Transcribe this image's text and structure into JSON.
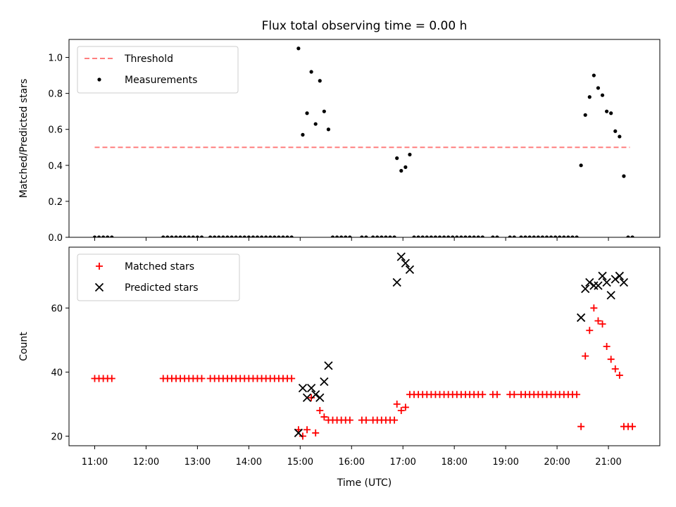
{
  "chart_data": [
    {
      "type": "scatter",
      "title": "Flux total observing time = 0.00 h",
      "xlabel": "",
      "ylabel": "Matched/Predicted stars",
      "ylim": [
        0,
        1.1
      ],
      "yticks": [
        0.0,
        0.2,
        0.4,
        0.6,
        0.8,
        1.0
      ],
      "xlim": [
        "10:30",
        "22:00"
      ],
      "grid": false,
      "legend_position": "top-left",
      "threshold": {
        "name": "Threshold",
        "value": 0.5,
        "x_start": "11:00",
        "x_end": "21:25",
        "color": "#ff7f7f",
        "style": "dashed"
      },
      "series": [
        {
          "name": "Measurements",
          "marker": "dot",
          "color": "#000000",
          "points": [
            [
              "11:00",
              0
            ],
            [
              "11:05",
              0
            ],
            [
              "11:10",
              0
            ],
            [
              "11:15",
              0
            ],
            [
              "11:20",
              0
            ],
            [
              "12:20",
              0
            ],
            [
              "12:25",
              0
            ],
            [
              "12:30",
              0
            ],
            [
              "12:35",
              0
            ],
            [
              "12:40",
              0
            ],
            [
              "12:45",
              0
            ],
            [
              "12:50",
              0
            ],
            [
              "12:55",
              0
            ],
            [
              "13:00",
              0
            ],
            [
              "13:05",
              0
            ],
            [
              "13:15",
              0
            ],
            [
              "13:20",
              0
            ],
            [
              "13:25",
              0
            ],
            [
              "13:30",
              0
            ],
            [
              "13:35",
              0
            ],
            [
              "13:40",
              0
            ],
            [
              "13:45",
              0
            ],
            [
              "13:50",
              0
            ],
            [
              "13:55",
              0
            ],
            [
              "14:00",
              0
            ],
            [
              "14:05",
              0
            ],
            [
              "14:10",
              0
            ],
            [
              "14:15",
              0
            ],
            [
              "14:20",
              0
            ],
            [
              "14:25",
              0
            ],
            [
              "14:30",
              0
            ],
            [
              "14:35",
              0
            ],
            [
              "14:40",
              0
            ],
            [
              "14:45",
              0
            ],
            [
              "14:50",
              0
            ],
            [
              "14:58",
              1.05
            ],
            [
              "15:03",
              0.57
            ],
            [
              "15:08",
              0.69
            ],
            [
              "15:13",
              0.92
            ],
            [
              "15:18",
              0.63
            ],
            [
              "15:23",
              0.87
            ],
            [
              "15:28",
              0.7
            ],
            [
              "15:33",
              0.6
            ],
            [
              "15:38",
              0
            ],
            [
              "15:43",
              0
            ],
            [
              "15:48",
              0
            ],
            [
              "15:53",
              0
            ],
            [
              "15:58",
              0
            ],
            [
              "16:12",
              0
            ],
            [
              "16:17",
              0
            ],
            [
              "16:25",
              0
            ],
            [
              "16:30",
              0
            ],
            [
              "16:35",
              0
            ],
            [
              "16:40",
              0
            ],
            [
              "16:45",
              0
            ],
            [
              "16:50",
              0
            ],
            [
              "16:53",
              0.44
            ],
            [
              "16:58",
              0.37
            ],
            [
              "17:03",
              0.39
            ],
            [
              "17:08",
              0.46
            ],
            [
              "17:13",
              0
            ],
            [
              "17:18",
              0
            ],
            [
              "17:23",
              0
            ],
            [
              "17:28",
              0
            ],
            [
              "17:33",
              0
            ],
            [
              "17:38",
              0
            ],
            [
              "17:43",
              0
            ],
            [
              "17:48",
              0
            ],
            [
              "17:53",
              0
            ],
            [
              "17:58",
              0
            ],
            [
              "18:03",
              0
            ],
            [
              "18:08",
              0
            ],
            [
              "18:13",
              0
            ],
            [
              "18:18",
              0
            ],
            [
              "18:23",
              0
            ],
            [
              "18:28",
              0
            ],
            [
              "18:33",
              0
            ],
            [
              "18:45",
              0
            ],
            [
              "18:50",
              0
            ],
            [
              "19:05",
              0
            ],
            [
              "19:10",
              0
            ],
            [
              "19:18",
              0
            ],
            [
              "19:23",
              0
            ],
            [
              "19:28",
              0
            ],
            [
              "19:33",
              0
            ],
            [
              "19:38",
              0
            ],
            [
              "19:43",
              0
            ],
            [
              "19:48",
              0
            ],
            [
              "19:53",
              0
            ],
            [
              "19:58",
              0
            ],
            [
              "20:03",
              0
            ],
            [
              "20:08",
              0
            ],
            [
              "20:13",
              0
            ],
            [
              "20:18",
              0
            ],
            [
              "20:23",
              0
            ],
            [
              "20:28",
              0.4
            ],
            [
              "20:33",
              0.68
            ],
            [
              "20:38",
              0.78
            ],
            [
              "20:43",
              0.9
            ],
            [
              "20:48",
              0.83
            ],
            [
              "20:53",
              0.79
            ],
            [
              "20:58",
              0.7
            ],
            [
              "21:03",
              0.69
            ],
            [
              "21:08",
              0.59
            ],
            [
              "21:13",
              0.56
            ],
            [
              "21:18",
              0.34
            ],
            [
              "21:23",
              0
            ],
            [
              "21:28",
              0
            ]
          ]
        }
      ]
    },
    {
      "type": "scatter",
      "title": "",
      "xlabel": "Time (UTC)",
      "ylabel": "Count",
      "ylim": [
        17,
        79
      ],
      "yticks": [
        20,
        40,
        60
      ],
      "xlim": [
        "10:30",
        "22:00"
      ],
      "xticks": [
        "11:00",
        "12:00",
        "13:00",
        "14:00",
        "15:00",
        "16:00",
        "17:00",
        "18:00",
        "19:00",
        "20:00",
        "21:00"
      ],
      "grid": false,
      "legend_position": "top-left",
      "series": [
        {
          "name": "Matched stars",
          "marker": "plus",
          "color": "#ff0000",
          "points": [
            [
              "11:00",
              38
            ],
            [
              "11:05",
              38
            ],
            [
              "11:10",
              38
            ],
            [
              "11:15",
              38
            ],
            [
              "11:20",
              38
            ],
            [
              "12:20",
              38
            ],
            [
              "12:25",
              38
            ],
            [
              "12:30",
              38
            ],
            [
              "12:35",
              38
            ],
            [
              "12:40",
              38
            ],
            [
              "12:45",
              38
            ],
            [
              "12:50",
              38
            ],
            [
              "12:55",
              38
            ],
            [
              "13:00",
              38
            ],
            [
              "13:05",
              38
            ],
            [
              "13:15",
              38
            ],
            [
              "13:20",
              38
            ],
            [
              "13:25",
              38
            ],
            [
              "13:30",
              38
            ],
            [
              "13:35",
              38
            ],
            [
              "13:40",
              38
            ],
            [
              "13:45",
              38
            ],
            [
              "13:50",
              38
            ],
            [
              "13:55",
              38
            ],
            [
              "14:00",
              38
            ],
            [
              "14:05",
              38
            ],
            [
              "14:10",
              38
            ],
            [
              "14:15",
              38
            ],
            [
              "14:20",
              38
            ],
            [
              "14:25",
              38
            ],
            [
              "14:30",
              38
            ],
            [
              "14:35",
              38
            ],
            [
              "14:40",
              38
            ],
            [
              "14:45",
              38
            ],
            [
              "14:50",
              38
            ],
            [
              "14:58",
              22
            ],
            [
              "15:03",
              20
            ],
            [
              "15:08",
              22
            ],
            [
              "15:13",
              32
            ],
            [
              "15:18",
              21
            ],
            [
              "15:23",
              28
            ],
            [
              "15:28",
              26
            ],
            [
              "15:33",
              25
            ],
            [
              "15:38",
              25
            ],
            [
              "15:43",
              25
            ],
            [
              "15:48",
              25
            ],
            [
              "15:53",
              25
            ],
            [
              "15:58",
              25
            ],
            [
              "16:12",
              25
            ],
            [
              "16:17",
              25
            ],
            [
              "16:25",
              25
            ],
            [
              "16:30",
              25
            ],
            [
              "16:35",
              25
            ],
            [
              "16:40",
              25
            ],
            [
              "16:45",
              25
            ],
            [
              "16:50",
              25
            ],
            [
              "16:53",
              30
            ],
            [
              "16:58",
              28
            ],
            [
              "17:03",
              29
            ],
            [
              "17:08",
              33
            ],
            [
              "17:13",
              33
            ],
            [
              "17:18",
              33
            ],
            [
              "17:23",
              33
            ],
            [
              "17:28",
              33
            ],
            [
              "17:33",
              33
            ],
            [
              "17:38",
              33
            ],
            [
              "17:43",
              33
            ],
            [
              "17:48",
              33
            ],
            [
              "17:53",
              33
            ],
            [
              "17:58",
              33
            ],
            [
              "18:03",
              33
            ],
            [
              "18:08",
              33
            ],
            [
              "18:13",
              33
            ],
            [
              "18:18",
              33
            ],
            [
              "18:23",
              33
            ],
            [
              "18:28",
              33
            ],
            [
              "18:33",
              33
            ],
            [
              "18:45",
              33
            ],
            [
              "18:50",
              33
            ],
            [
              "19:05",
              33
            ],
            [
              "19:10",
              33
            ],
            [
              "19:18",
              33
            ],
            [
              "19:23",
              33
            ],
            [
              "19:28",
              33
            ],
            [
              "19:33",
              33
            ],
            [
              "19:38",
              33
            ],
            [
              "19:43",
              33
            ],
            [
              "19:48",
              33
            ],
            [
              "19:53",
              33
            ],
            [
              "19:58",
              33
            ],
            [
              "20:03",
              33
            ],
            [
              "20:08",
              33
            ],
            [
              "20:13",
              33
            ],
            [
              "20:18",
              33
            ],
            [
              "20:23",
              33
            ],
            [
              "20:28",
              23
            ],
            [
              "20:33",
              45
            ],
            [
              "20:38",
              53
            ],
            [
              "20:43",
              60
            ],
            [
              "20:48",
              56
            ],
            [
              "20:53",
              55
            ],
            [
              "20:58",
              48
            ],
            [
              "21:03",
              44
            ],
            [
              "21:08",
              41
            ],
            [
              "21:13",
              39
            ],
            [
              "21:18",
              23
            ],
            [
              "21:23",
              23
            ],
            [
              "21:28",
              23
            ]
          ]
        },
        {
          "name": "Predicted stars",
          "marker": "x",
          "color": "#000000",
          "points": [
            [
              "14:58",
              21
            ],
            [
              "15:03",
              35
            ],
            [
              "15:08",
              32
            ],
            [
              "15:13",
              35
            ],
            [
              "15:18",
              33
            ],
            [
              "15:23",
              32
            ],
            [
              "15:28",
              37
            ],
            [
              "15:33",
              42
            ],
            [
              "16:53",
              68
            ],
            [
              "16:58",
              76
            ],
            [
              "17:03",
              74
            ],
            [
              "17:08",
              72
            ],
            [
              "20:28",
              57
            ],
            [
              "20:33",
              66
            ],
            [
              "20:38",
              68
            ],
            [
              "20:43",
              67
            ],
            [
              "20:48",
              67
            ],
            [
              "20:53",
              70
            ],
            [
              "20:58",
              68
            ],
            [
              "21:03",
              64
            ],
            [
              "21:08",
              69
            ],
            [
              "21:13",
              70
            ],
            [
              "21:18",
              68
            ]
          ]
        }
      ]
    }
  ]
}
